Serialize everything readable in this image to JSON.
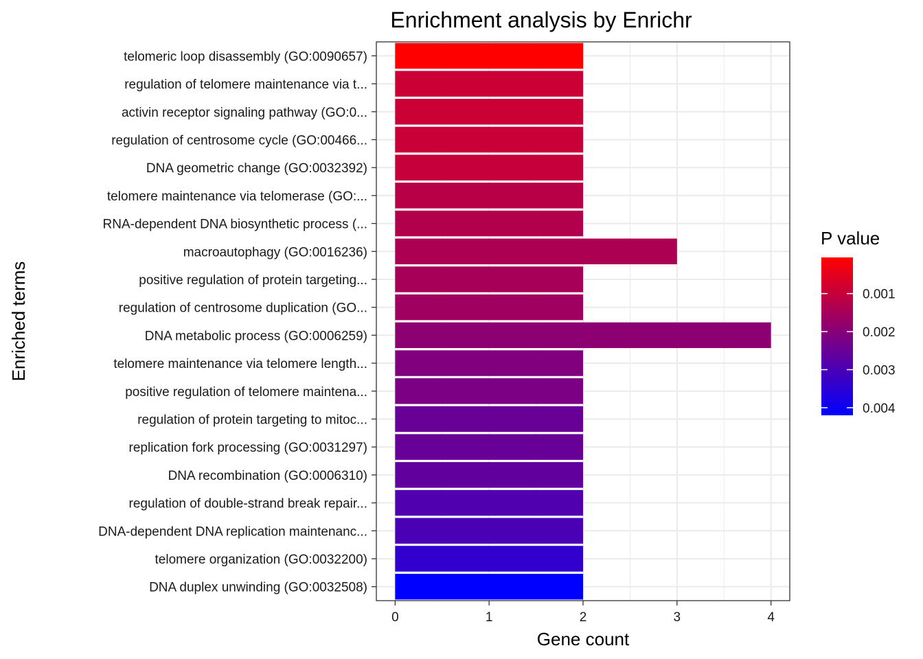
{
  "chart_data": {
    "type": "bar",
    "orientation": "horizontal",
    "title": "Enrichment analysis by Enrichr",
    "xlabel": "Gene count",
    "ylabel": "Enriched terms",
    "xlim": [
      0,
      4.2
    ],
    "xticks": [
      0,
      1,
      2,
      3,
      4
    ],
    "grid": true,
    "categories": [
      "telomeric loop disassembly (GO:0090657)",
      "regulation of telomere maintenance via t...",
      "activin receptor signaling pathway (GO:0...",
      "regulation of centrosome cycle (GO:00466...",
      "DNA geometric change (GO:0032392)",
      "telomere maintenance via telomerase (GO:...",
      "RNA-dependent DNA biosynthetic process (...",
      "macroautophagy (GO:0016236)",
      "positive regulation of protein targeting...",
      "regulation of centrosome duplication (GO...",
      "DNA metabolic process (GO:0006259)",
      "telomere maintenance via telomere length...",
      "positive regulation of telomere maintena...",
      "regulation of protein targeting to mitoc...",
      "replication fork processing (GO:0031297)",
      "DNA recombination (GO:0006310)",
      "regulation of double-strand break repair...",
      "DNA-dependent DNA replication maintenanc...",
      "telomere organization (GO:0032200)",
      "DNA duplex unwinding (GO:0032508)"
    ],
    "values": [
      2,
      2,
      2,
      2,
      2,
      2,
      2,
      3,
      2,
      2,
      4,
      2,
      2,
      2,
      2,
      2,
      2,
      2,
      2,
      2
    ],
    "p_values": [
      5e-05,
      0.0009,
      0.0009,
      0.00095,
      0.001,
      0.0012,
      0.0013,
      0.0014,
      0.0015,
      0.0016,
      0.0019,
      0.0021,
      0.0022,
      0.0025,
      0.0025,
      0.0026,
      0.0029,
      0.003,
      0.0034,
      0.0042
    ],
    "legend": {
      "title": "P value",
      "placement": "right",
      "ticks": [
        0.001,
        0.002,
        0.003,
        0.004
      ],
      "tick_labels": [
        "0.001",
        "0.002",
        "0.003",
        "0.004"
      ],
      "range": [
        5e-05,
        0.0042
      ],
      "color_low_p": "#ff0000",
      "color_high_p": "#0000ff"
    }
  }
}
